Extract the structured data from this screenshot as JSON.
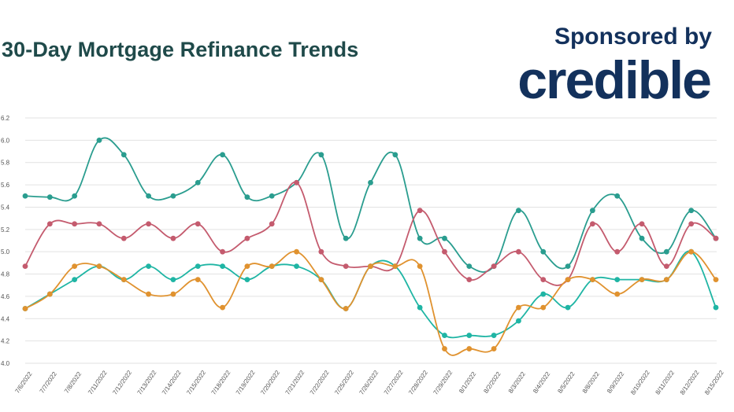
{
  "header": {
    "title": "30-Day Mortgage Refinance Trends",
    "sponsor_text": "Sponsored by",
    "brand": "credible"
  },
  "chart_data": {
    "type": "line",
    "title": "30-Day Mortgage Refinance Trends",
    "xlabel": "",
    "ylabel": "",
    "ylim": [
      4.0,
      6.2
    ],
    "yticks": [
      4.0,
      4.2,
      4.4,
      4.6,
      4.8,
      5.0,
      5.2,
      5.4,
      5.6,
      5.8,
      6.0,
      6.2
    ],
    "grid": true,
    "categories": [
      "7/6/2022",
      "7/7/2022",
      "7/8/2022",
      "7/11/2022",
      "7/12/2022",
      "7/13/2022",
      "7/14/2022",
      "7/15/2022",
      "7/18/2022",
      "7/19/2022",
      "7/20/2022",
      "7/21/2022",
      "7/22/2022",
      "7/25/2022",
      "7/26/2022",
      "7/27/2022",
      "7/28/2022",
      "7/29/2022",
      "8/1/2022",
      "8/2/2022",
      "8/3/2022",
      "8/4/2022",
      "8/5/2022",
      "8/8/2022",
      "8/9/2022",
      "8/10/2022",
      "8/11/2022",
      "8/12/2022",
      "8/15/2022"
    ],
    "series": [
      {
        "color": "#2a9d8f",
        "values": [
          5.5,
          5.49,
          5.5,
          6.0,
          5.87,
          5.5,
          5.5,
          5.62,
          5.87,
          5.49,
          5.5,
          5.62,
          5.87,
          5.12,
          5.62,
          5.87,
          5.12,
          5.12,
          4.87,
          4.87,
          5.37,
          5.0,
          4.87,
          5.37,
          5.5,
          5.12,
          5.0,
          5.37,
          5.12
        ]
      },
      {
        "color": "#c45b6e",
        "values": [
          4.87,
          5.25,
          5.25,
          5.25,
          5.12,
          5.25,
          5.12,
          5.25,
          5.0,
          5.12,
          5.25,
          5.62,
          5.0,
          4.87,
          4.87,
          4.87,
          5.37,
          5.0,
          4.75,
          4.87,
          5.0,
          4.75,
          4.75,
          5.25,
          5.0,
          5.25,
          4.87,
          5.25,
          5.12
        ]
      },
      {
        "color": "#1fb5a4",
        "values": [
          4.49,
          4.62,
          4.75,
          4.87,
          4.75,
          4.87,
          4.75,
          4.87,
          4.87,
          4.75,
          4.87,
          4.87,
          4.75,
          4.49,
          4.87,
          4.87,
          4.5,
          4.25,
          4.25,
          4.25,
          4.38,
          4.62,
          4.5,
          4.75,
          4.75,
          4.75,
          4.75,
          5.0,
          4.5
        ]
      },
      {
        "color": "#e0922f",
        "values": [
          4.49,
          4.62,
          4.87,
          4.87,
          4.75,
          4.62,
          4.62,
          4.75,
          4.5,
          4.87,
          4.87,
          5.0,
          4.75,
          4.49,
          4.87,
          4.87,
          4.87,
          4.13,
          4.13,
          4.13,
          4.5,
          4.5,
          4.75,
          4.75,
          4.62,
          4.75,
          4.75,
          5.0,
          4.75
        ]
      }
    ]
  }
}
